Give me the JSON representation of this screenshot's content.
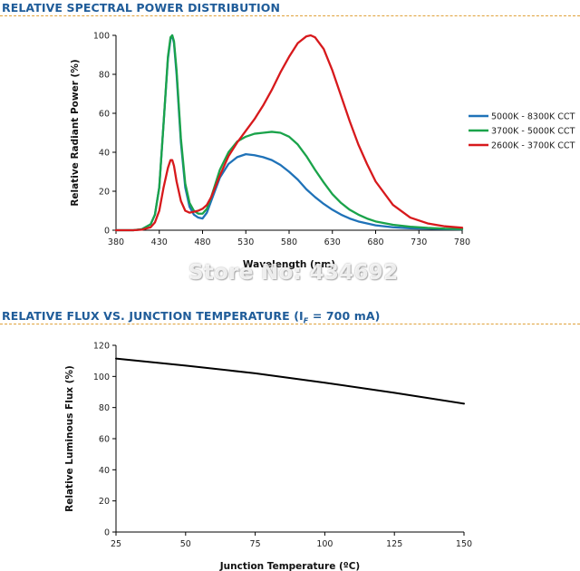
{
  "sections": {
    "spectral_title": "RELATIVE SPECTRAL POWER DISTRIBUTION",
    "flux_title_main": "RELATIVE FLUX VS. JUNCTION TEMPERATURE (I",
    "flux_title_sub": "F",
    "flux_title_end": " = 700 mA)"
  },
  "watermark": "Store No: 434692",
  "colors": {
    "section_title": "#1f5c99",
    "section_rule": "#e0a23a",
    "series_5000": "#1f72b8",
    "series_3700": "#1aa34a",
    "series_2600": "#d7191c",
    "flux_line": "#000000"
  },
  "chart_data": [
    {
      "type": "line",
      "xlabel": "Wavelength (nm)",
      "ylabel": "Relative Radiant Power (%)",
      "xlim": [
        380,
        780
      ],
      "ylim": [
        0,
        100
      ],
      "xticks": [
        380,
        430,
        480,
        530,
        580,
        630,
        680,
        730,
        780
      ],
      "yticks": [
        0,
        20,
        40,
        60,
        80,
        100
      ],
      "grid": false,
      "legend_position": "right",
      "series": [
        {
          "name": "5000K - 8300K CCT",
          "color": "#1f72b8",
          "x": [
            380,
            400,
            410,
            420,
            425,
            430,
            435,
            440,
            443,
            445,
            447,
            450,
            455,
            460,
            465,
            470,
            475,
            480,
            485,
            490,
            500,
            510,
            520,
            530,
            540,
            550,
            560,
            570,
            580,
            590,
            600,
            610,
            620,
            630,
            640,
            650,
            660,
            670,
            680,
            700,
            720,
            740,
            760,
            780
          ],
          "y": [
            0,
            0,
            0.5,
            3,
            8,
            22,
            55,
            88,
            98,
            100,
            96,
            80,
            45,
            22,
            12,
            8,
            6.5,
            6,
            9,
            15,
            27,
            34,
            37.5,
            39,
            38.5,
            37.5,
            36,
            33.5,
            30,
            26,
            21,
            17,
            13.5,
            10.5,
            8,
            6,
            4.5,
            3.5,
            2.5,
            1.5,
            1,
            0.8,
            0.6,
            0.5
          ]
        },
        {
          "name": "3700K - 5000K CCT",
          "color": "#1aa34a",
          "x": [
            380,
            400,
            410,
            420,
            425,
            430,
            435,
            440,
            443,
            445,
            447,
            450,
            455,
            460,
            465,
            470,
            475,
            480,
            485,
            490,
            500,
            510,
            520,
            530,
            540,
            550,
            560,
            570,
            580,
            590,
            600,
            610,
            620,
            630,
            640,
            650,
            660,
            670,
            680,
            700,
            720,
            740,
            760,
            780
          ],
          "y": [
            0,
            0,
            0.5,
            3,
            8,
            22,
            55,
            89,
            99,
            100,
            97,
            82,
            47,
            24,
            14,
            10,
            8.5,
            8.5,
            11,
            17,
            31,
            40,
            45.5,
            48,
            49.5,
            50,
            50.5,
            50,
            48,
            44,
            38,
            31,
            24.5,
            18.5,
            14,
            10.5,
            8,
            6,
            4.5,
            2.8,
            1.8,
            1.2,
            0.8,
            0.6
          ]
        },
        {
          "name": "2600K - 3700K CCT",
          "color": "#d7191c",
          "x": [
            380,
            400,
            410,
            420,
            425,
            430,
            435,
            440,
            443,
            445,
            447,
            450,
            455,
            460,
            465,
            470,
            475,
            480,
            485,
            490,
            500,
            510,
            520,
            530,
            540,
            550,
            560,
            570,
            580,
            590,
            600,
            605,
            610,
            620,
            630,
            640,
            650,
            660,
            670,
            680,
            700,
            720,
            740,
            760,
            780
          ],
          "y": [
            0,
            0,
            0.3,
            1.5,
            4,
            10,
            22,
            32,
            36,
            36,
            33,
            25,
            15,
            10,
            9,
            9.5,
            10,
            11,
            13,
            17,
            28,
            38,
            45,
            51,
            57,
            64,
            72,
            81,
            89,
            96,
            99.5,
            100,
            99,
            93,
            82,
            69,
            56,
            44,
            34,
            25,
            13,
            6.5,
            3.5,
            2,
            1.3
          ]
        }
      ]
    },
    {
      "type": "line",
      "xlabel": "Junction Temperature (ºC)",
      "ylabel": "Relative Luminous Flux (%)",
      "xlim": [
        25,
        150
      ],
      "ylim": [
        0,
        120
      ],
      "xticks": [
        25,
        50,
        75,
        100,
        125,
        150
      ],
      "yticks": [
        0,
        20,
        40,
        60,
        80,
        100,
        120
      ],
      "grid": false,
      "series": [
        {
          "color": "#000000",
          "x": [
            25,
            50,
            75,
            100,
            125,
            150
          ],
          "y": [
            111.5,
            107,
            102,
            96,
            89.5,
            82.5
          ]
        }
      ]
    }
  ]
}
